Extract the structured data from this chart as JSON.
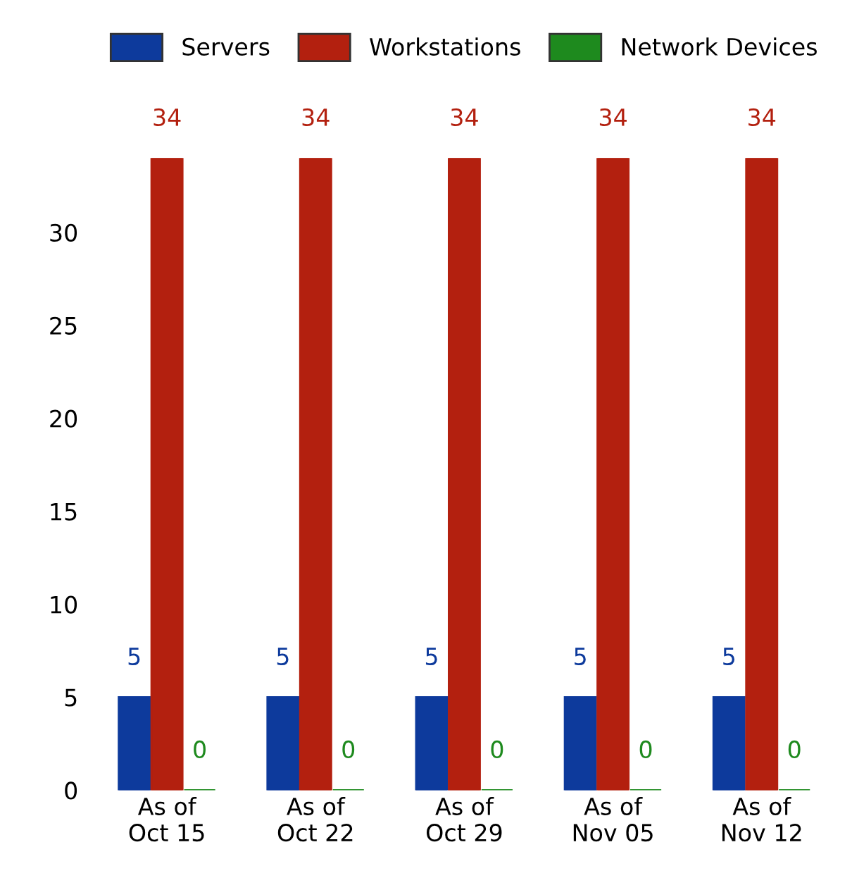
{
  "chart_data": {
    "type": "bar",
    "categories": [
      "As of\nOct 15",
      "As of\nOct 22",
      "As of\nOct 29",
      "As of\nNov 05",
      "As of\nNov 12"
    ],
    "series": [
      {
        "name": "Servers",
        "color": "#0d3a9c",
        "values": [
          5,
          5,
          5,
          5,
          5
        ]
      },
      {
        "name": "Workstations",
        "color": "#b3200f",
        "values": [
          34,
          34,
          34,
          34,
          34
        ]
      },
      {
        "name": "Network Devices",
        "color": "#1e8a1e",
        "values": [
          0,
          0,
          0,
          0,
          0
        ]
      }
    ],
    "ylim": [
      0,
      34
    ],
    "yticks": [
      0,
      5,
      10,
      15,
      20,
      25,
      30
    ],
    "data_labels": true,
    "legend": "top",
    "grid": false
  }
}
